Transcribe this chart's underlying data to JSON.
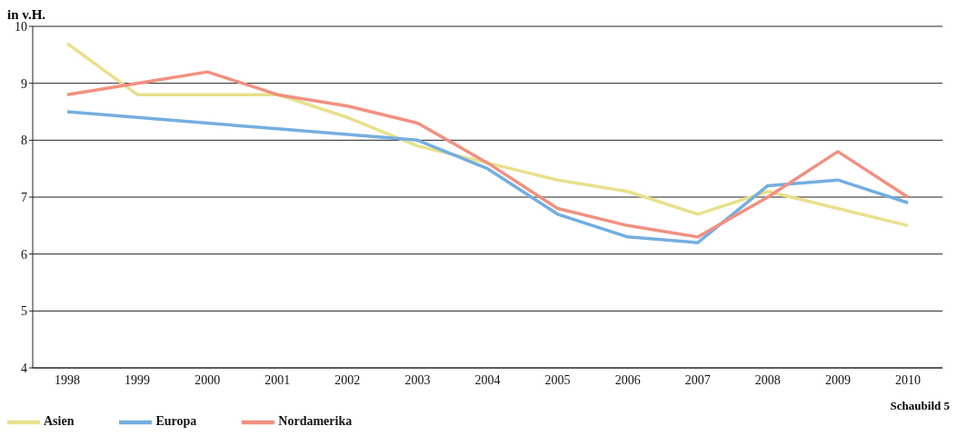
{
  "chart_data": {
    "type": "line",
    "ylabel": "in v.H.",
    "categories": [
      "1998",
      "1999",
      "2000",
      "2001",
      "2002",
      "2003",
      "2004",
      "2005",
      "2006",
      "2007",
      "2008",
      "2009",
      "2010"
    ],
    "series": [
      {
        "name": "Asien",
        "color": "#e8e08c",
        "values": [
          9.7,
          8.8,
          8.8,
          8.8,
          8.4,
          7.9,
          7.6,
          7.3,
          7.1,
          6.7,
          7.1,
          6.8,
          6.5
        ]
      },
      {
        "name": "Europa",
        "color": "#74aee0",
        "values": [
          8.5,
          8.4,
          8.3,
          8.2,
          8.1,
          8.0,
          7.5,
          6.7,
          6.3,
          6.2,
          7.2,
          7.3,
          6.9
        ]
      },
      {
        "name": "Nordamerika",
        "color": "#f29080",
        "values": [
          8.8,
          9.0,
          9.2,
          8.8,
          8.6,
          8.3,
          7.6,
          6.8,
          6.5,
          6.3,
          7.0,
          7.8,
          7.0
        ]
      }
    ],
    "ylim": [
      4,
      10
    ],
    "yticks": [
      4,
      5,
      6,
      7,
      8,
      9,
      10
    ],
    "grid": "y",
    "legend": "bottom left",
    "marker": "none",
    "line_style": "solid",
    "annotations": [
      "Schaubild 5"
    ]
  }
}
